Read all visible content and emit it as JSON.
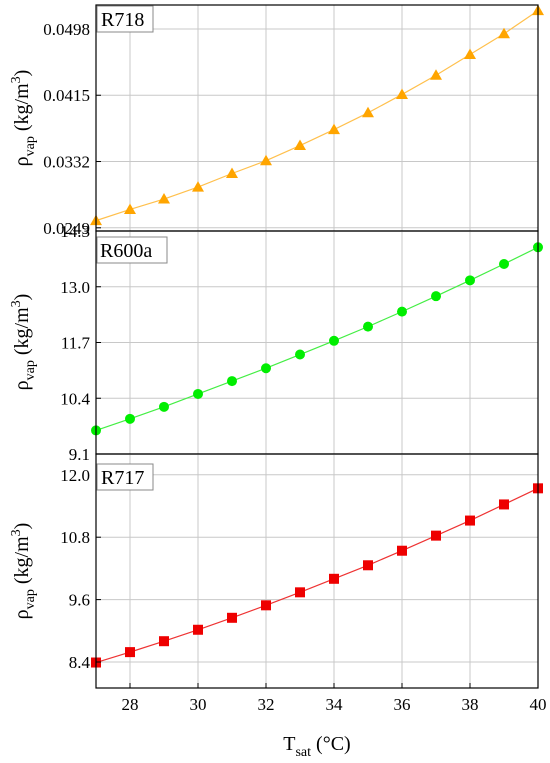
{
  "chart_data": [
    {
      "type": "line",
      "label": "R718",
      "ylabel": "ρ",
      "ylabel_sub": "vap",
      "ylabel_unit": " (kg/m",
      "ylabel_sup": "3",
      "ylabel_close": ")",
      "ylim": [
        0.0245,
        0.0528
      ],
      "yticks": [
        0.0249,
        0.0332,
        0.0415,
        0.0498
      ],
      "ytick_labels": [
        "0.0249",
        "0.0332",
        "0.0415",
        "0.0498"
      ],
      "marker": "triangle",
      "color": "#FFA500",
      "line_color": "#FFC04D",
      "x": [
        27,
        28,
        29,
        30,
        31,
        32,
        33,
        34,
        35,
        36,
        37,
        38,
        39,
        40
      ],
      "values": [
        0.0258,
        0.0272,
        0.0285,
        0.03,
        0.0317,
        0.0333,
        0.0352,
        0.0372,
        0.0393,
        0.0416,
        0.044,
        0.0466,
        0.0492,
        0.0521
      ],
      "grid": true
    },
    {
      "type": "line",
      "label": "R600a",
      "ylabel": "ρ",
      "ylabel_sub": "vap",
      "ylabel_unit": " (kg/m",
      "ylabel_sup": "3",
      "ylabel_close": ")",
      "ylim": [
        9.1,
        14.3
      ],
      "yticks": [
        9.1,
        10.4,
        11.7,
        13.0,
        14.3
      ],
      "ytick_labels": [
        "9.1",
        "10.4",
        "11.7",
        "13.0",
        "14.3"
      ],
      "marker": "circle",
      "color": "#00EE00",
      "line_color": "#44EE44",
      "x": [
        27,
        28,
        29,
        30,
        31,
        32,
        33,
        34,
        35,
        36,
        37,
        38,
        39,
        40
      ],
      "values": [
        9.65,
        9.92,
        10.2,
        10.5,
        10.8,
        11.1,
        11.42,
        11.74,
        12.07,
        12.42,
        12.78,
        13.15,
        13.53,
        13.92
      ],
      "grid": true
    },
    {
      "type": "line",
      "label": "R717",
      "ylabel": "ρ",
      "ylabel_sub": "vap",
      "ylabel_unit": " (kg/m",
      "ylabel_sup": "3",
      "ylabel_close": ")",
      "ylim": [
        7.9,
        12.4
      ],
      "yticks": [
        8.4,
        9.6,
        10.8,
        12.0
      ],
      "ytick_labels": [
        "8.4",
        "9.6",
        "10.8",
        "12.0"
      ],
      "marker": "square",
      "color": "#EE0000",
      "line_color": "#EE3333",
      "x": [
        27,
        28,
        29,
        30,
        31,
        32,
        33,
        34,
        35,
        36,
        37,
        38,
        39,
        40
      ],
      "values": [
        8.39,
        8.59,
        8.8,
        9.02,
        9.25,
        9.49,
        9.74,
        10.0,
        10.26,
        10.54,
        10.83,
        11.12,
        11.43,
        11.74
      ],
      "grid": true
    }
  ],
  "x_axis": {
    "xlim": [
      27,
      40
    ],
    "xticks": [
      28,
      30,
      32,
      34,
      36,
      38,
      40
    ],
    "xtick_labels": [
      "28",
      "30",
      "32",
      "34",
      "36",
      "38",
      "40"
    ],
    "xlabel": "T",
    "xlabel_sub": "sat",
    "xlabel_unit": " (°C)"
  }
}
